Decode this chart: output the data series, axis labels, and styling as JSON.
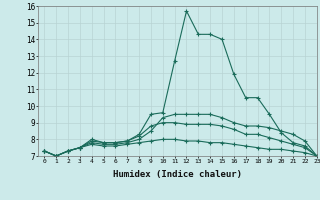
{
  "title": "",
  "xlabel": "Humidex (Indice chaleur)",
  "ylabel": "",
  "xlim": [
    -0.5,
    23
  ],
  "ylim": [
    7,
    16
  ],
  "xticks": [
    0,
    1,
    2,
    3,
    4,
    5,
    6,
    7,
    8,
    9,
    10,
    11,
    12,
    13,
    14,
    15,
    16,
    17,
    18,
    19,
    20,
    21,
    22,
    23
  ],
  "yticks": [
    7,
    8,
    9,
    10,
    11,
    12,
    13,
    14,
    15,
    16
  ],
  "bg_color": "#cceaea",
  "grid_color": "#b8d4d4",
  "line_color": "#1a6b5a",
  "lines": [
    [
      7.3,
      7.0,
      7.3,
      7.5,
      8.0,
      7.8,
      7.8,
      7.9,
      8.3,
      9.5,
      9.6,
      12.7,
      15.7,
      14.3,
      14.3,
      14.0,
      11.9,
      10.5,
      10.5,
      9.5,
      8.4,
      7.8,
      7.6,
      7.0
    ],
    [
      7.3,
      7.0,
      7.3,
      7.5,
      7.8,
      7.7,
      7.7,
      7.8,
      8.0,
      8.5,
      9.3,
      9.5,
      9.5,
      9.5,
      9.5,
      9.3,
      9.0,
      8.8,
      8.8,
      8.7,
      8.5,
      8.3,
      7.9,
      7.0
    ],
    [
      7.3,
      7.0,
      7.3,
      7.5,
      7.7,
      7.6,
      7.6,
      7.7,
      7.8,
      7.9,
      8.0,
      8.0,
      7.9,
      7.9,
      7.8,
      7.8,
      7.7,
      7.6,
      7.5,
      7.4,
      7.4,
      7.3,
      7.2,
      7.0
    ],
    [
      7.3,
      7.0,
      7.3,
      7.5,
      7.9,
      7.8,
      7.8,
      7.9,
      8.2,
      8.8,
      9.0,
      9.0,
      8.9,
      8.9,
      8.9,
      8.8,
      8.6,
      8.3,
      8.3,
      8.1,
      7.9,
      7.7,
      7.5,
      7.0
    ]
  ]
}
